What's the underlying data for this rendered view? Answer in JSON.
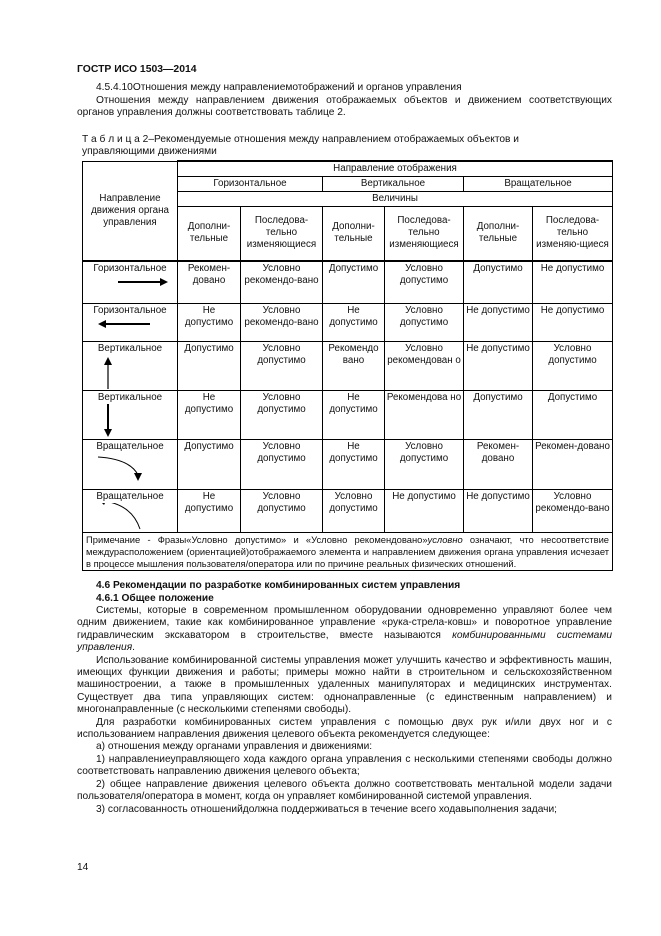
{
  "header": "ГОСТР ИСО 1503—2014",
  "section_4_5_4_10": {
    "title": "4.5.4.10Отношения между направлениемотображений и органов управления",
    "text": "Отношения между направлением движения отображаемых объектов и движением соответствующих органов управления должны соответствовать таблице 2."
  },
  "table": {
    "caption": "Т а б л и ц а  2–Рекомендуемые отношения между направлением отображаемых объектов и управляющими движениями",
    "row_header": "Направление движения органа управления",
    "display_direction": "Направление отображения",
    "groups": [
      "Горизонтальное",
      "Вертикальное",
      "Вращательное"
    ],
    "magnitudes": "Величины",
    "subheaders": [
      "Дополни-тельные",
      "Последова-тельно изменяющиеся",
      "Дополни-тельные",
      "Последова-тельно изменяющиеся",
      "Дополни-тельные",
      "Последова-тельно изменяю-щиеся"
    ],
    "rows": [
      {
        "label": "Горизонтальное",
        "arrow": "arrow-right",
        "cells": [
          "Рекомен-довано",
          "Условно рекомендо-вано",
          "Допустимо",
          "Условно допустимо",
          "Допустимо",
          "Не допустимо"
        ]
      },
      {
        "label": "Горизонтальное",
        "arrow": "arrow-left",
        "cells": [
          "Не допустимо",
          "Условно рекомендо-вано",
          "Не допустимо",
          "Условно допустимо",
          "Не допустимо",
          "Не допустимо"
        ]
      },
      {
        "label": "Вертикальное",
        "arrow": "arrow-up",
        "cells": [
          "Допустимо",
          "Условно допустимо",
          "Рекомендо вано",
          "Условно рекомендован о",
          "Не допустимо",
          "Условно допустимо"
        ]
      },
      {
        "label": "Вертикальное",
        "arrow": "arrow-down",
        "cells": [
          "Не допустимо",
          "Условно допустимо",
          "Не допустимо",
          "Рекомендова но",
          "Допустимо",
          "Допустимо"
        ]
      },
      {
        "label": "Вращательное",
        "arrow": "curved-arrow-clockwise",
        "cells": [
          "Допустимо",
          "Условно допустимо",
          "Не допустимо",
          "Условно допустимо",
          "Рекомен-довано",
          "Рекомен-довано"
        ]
      },
      {
        "label": "Вращательное",
        "arrow": "curved-arrow-counterclockwise",
        "cells": [
          "Не допустимо",
          "Условно допустимо",
          "Условно допустимо",
          "Не допустимо",
          "Не допустимо",
          "Условно рекомендо-вано"
        ]
      }
    ],
    "note_prefix": "Примечание - Фразы«Условно допустимо» и «Условно рекомендовано»",
    "note_italic": "условно",
    "note_rest": " означают, что несоответствие междурасположением (ориентацией)отображаемого элемента и направлением движения органа управления исчезает в процессе мышления пользователя/оператора или по причине реальных физических отношений."
  },
  "section_4_6": {
    "title": "4.6 Рекомендации по разработке комбинированных систем управления",
    "sub_title": "4.6.1 Общее положение",
    "p1": "Системы, которые в современном промышленном оборудовании одновременно управляют более чем одним движением, такие как комбинированное управление «рука-стрела-ковш» и поворотное управление гидравлическим экскаватором в строительстве, вместе называются ",
    "p1_italic": "комбинированными системами управления",
    "p2": "Использование комбинированной системы управления может улучшить качество и эффективность машин, имеющих функции движения и работы; примеры можно найти в строительном и сельскохозяйственном машиностроении, а также в промышленных удаленных манипуляторах и медицинских инструментах. Существует два типа управляющих систем: однонаправленные (с единственным направлением) и многонаправленные (с несколькими степенями свободы).",
    "p3": "Для разработки комбинированных систем управления с помощью двух рук и/или двух ног и с использованием направления движения целевого объекта рекомендуется следующее:",
    "a": "а)  отношения между органами управления и движениями:",
    "i1": "1)  направлениеуправляющего хода каждого органа управления с несколькими степенями свободы должно соответствовать направлению движения целевого объекта;",
    "i2": "2)  общее направление движения целевого объекта должно соответствовать ментальной модели задачи пользователя/оператора в момент, когда он управляет комбинированной системой управления.",
    "i3": "3)  согласованность отношенийдолжна поддерживаться в течение всего ходавыполнения задачи;"
  },
  "page_number": "14"
}
